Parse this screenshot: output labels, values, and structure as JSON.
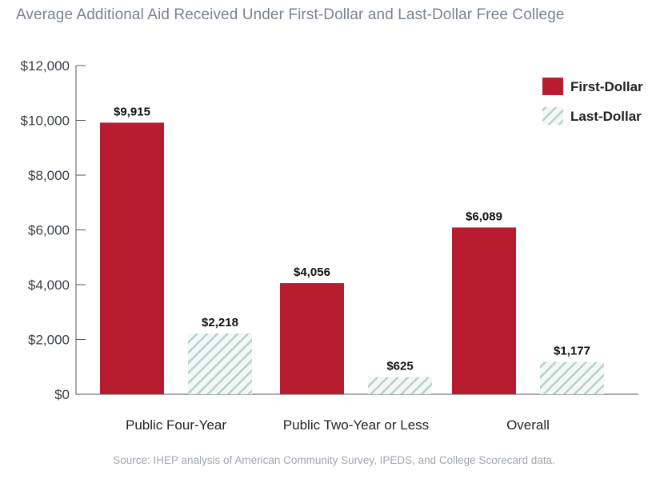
{
  "chart_data": {
    "type": "bar",
    "title": "Average Additional Aid Received Under First-Dollar and Last-Dollar Free College",
    "categories": [
      "Public Four-Year",
      "Public Two-Year or Less",
      "Overall"
    ],
    "series": [
      {
        "name": "First-Dollar",
        "values": [
          9915,
          4056,
          6089
        ],
        "labels": [
          "$9,915",
          "$4,056",
          "$6,089"
        ],
        "color": "#b71c2f",
        "pattern": "solid"
      },
      {
        "name": "Last-Dollar",
        "values": [
          2218,
          625,
          1177
        ],
        "labels": [
          "$2,218",
          "$625",
          "$1,177"
        ],
        "color": "#c9dcd8",
        "pattern": "diagonal-hatch"
      }
    ],
    "yticks": [
      "$0",
      "$2,000",
      "$4,000",
      "$6,000",
      "$8,000",
      "$10,000",
      "$12,000"
    ],
    "ylim": [
      0,
      12000
    ],
    "xlabel": "",
    "ylabel": "",
    "grid": false,
    "legend_position": "top-right",
    "source": "Source: IHEP analysis of American Community Survey, IPEDS, and College Scorecard data."
  }
}
